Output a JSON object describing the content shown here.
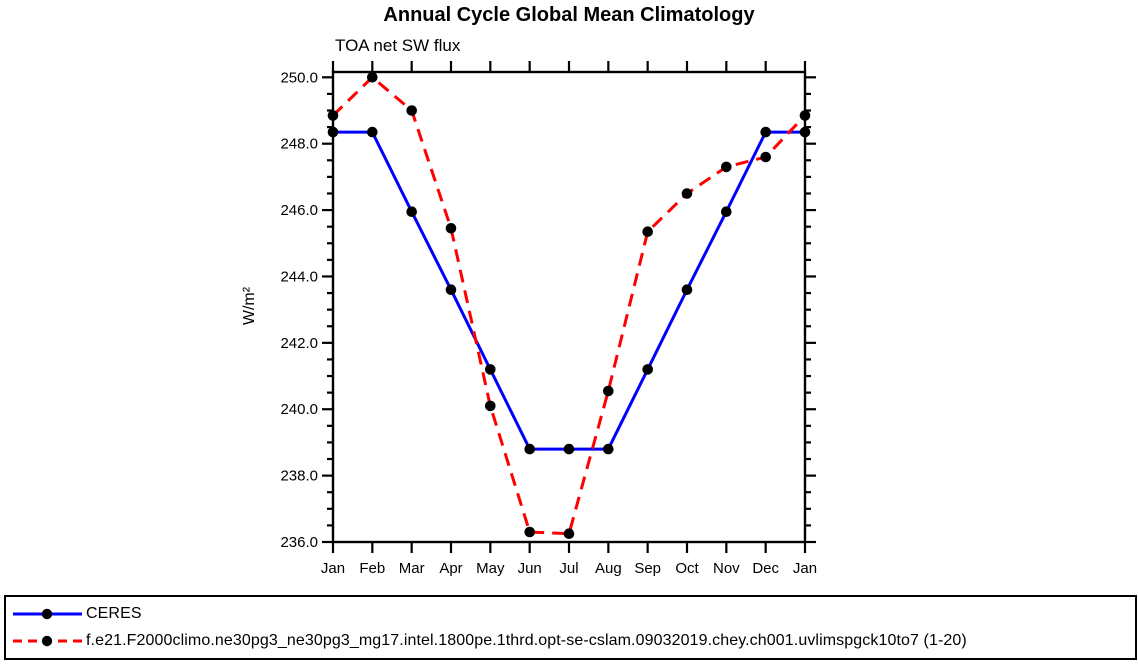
{
  "page": {
    "background": "#ffffff"
  },
  "chart_data": {
    "type": "line",
    "title": "Annual Cycle Global Mean Climatology",
    "subtitle": "TOA net SW flux",
    "xlabel": "",
    "ylabel": "W/m²",
    "categories": [
      "Jan",
      "Feb",
      "Mar",
      "Apr",
      "May",
      "Jun",
      "Jul",
      "Aug",
      "Sep",
      "Oct",
      "Nov",
      "Dec",
      "Jan"
    ],
    "ylim": [
      236.0,
      250.16
    ],
    "ytick_values": [
      236,
      238,
      240,
      242,
      244,
      246,
      248,
      250
    ],
    "ytick_labels": [
      "236.0",
      "238.0",
      "240.0",
      "242.0",
      "244.0",
      "246.0",
      "248.0",
      "250.0"
    ],
    "minor_tick_step": 0.5,
    "grid": "off",
    "legend_position": "bottom-box",
    "axis_color": "#000000",
    "marker_color": "#000000",
    "series": [
      {
        "name": "CERES",
        "color": "#0000ff",
        "line_style": "solid",
        "values": [
          248.35,
          248.35,
          245.95,
          243.6,
          241.2,
          238.8,
          238.8,
          238.8,
          241.2,
          243.6,
          245.95,
          248.35,
          248.35
        ]
      },
      {
        "name": "f.e21.F2000climo.ne30pg3_ne30pg3_mg17.intel.1800pe.1thrd.opt-se-cslam.09032019.chey.ch001.uvlimspgck10to7 (1-20)",
        "color": "#ff0000",
        "line_style": "dashed",
        "values": [
          248.85,
          250.0,
          249.0,
          245.45,
          240.1,
          236.3,
          236.25,
          240.55,
          245.35,
          246.5,
          247.3,
          247.6,
          248.85
        ]
      }
    ]
  }
}
